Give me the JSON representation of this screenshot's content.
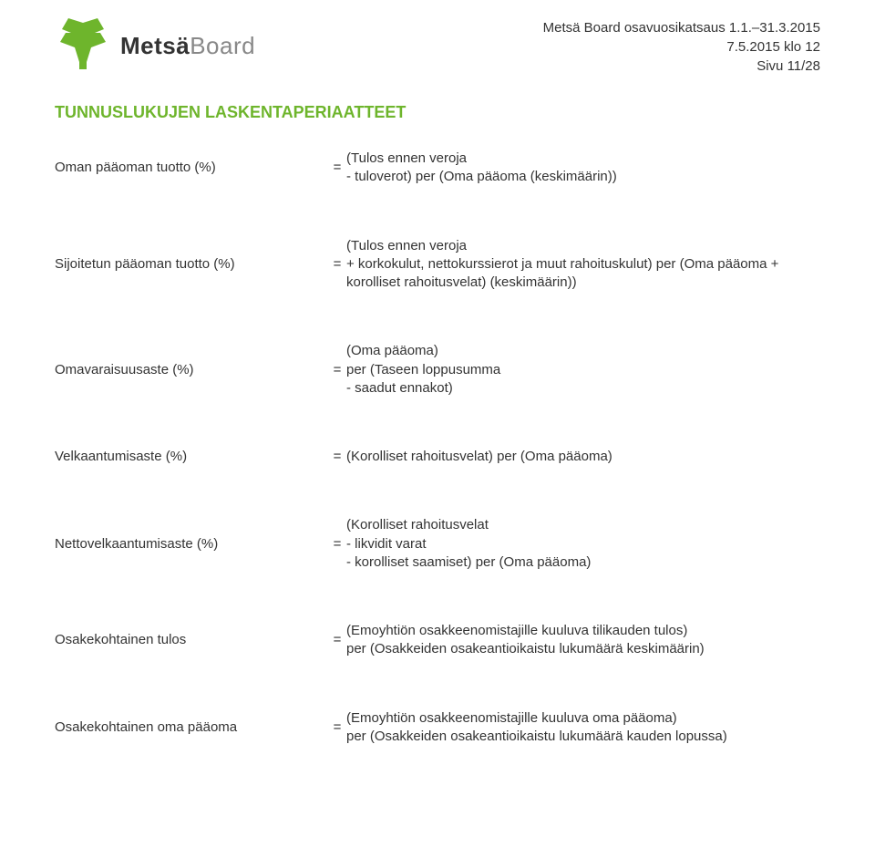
{
  "header": {
    "logo_bold": "Metsä",
    "logo_light": "Board",
    "meta_line1": "Metsä Board osavuosikatsaus 1.1.–31.3.2015",
    "meta_line2": "7.5.2015 klo 12",
    "meta_line3": "Sivu 11/28"
  },
  "section_title": "TUNNUSLUKUJEN LASKENTAPERIAATTEET",
  "title_color": "#6eb52c",
  "logo_color": "#6eb52c",
  "eq": "=",
  "metrics": [
    {
      "label": "Oman pääoman tuotto (%)",
      "formula": "(Tulos ennen veroja\n- tuloverot) per (Oma pääoma (keskimäärin))"
    },
    {
      "label": "Sijoitetun pääoman tuotto (%)",
      "formula": "(Tulos ennen veroja\n+ korkokulut, nettokurssierot ja muut rahoituskulut) per (Oma pääoma + korolliset rahoitusvelat) (keskimäärin))"
    },
    {
      "label": "Omavaraisuusaste (%)",
      "formula": "(Oma pääoma)\nper (Taseen loppusumma\n- saadut ennakot)"
    },
    {
      "label": "Velkaantumisaste (%)",
      "formula": "(Korolliset rahoitusvelat) per (Oma pääoma)"
    },
    {
      "label": "Nettovelkaantumisaste (%)",
      "formula": "(Korolliset rahoitusvelat\n- likvidit varat\n- korolliset saamiset) per (Oma pääoma)"
    },
    {
      "label": "Osakekohtainen tulos",
      "formula": "(Emoyhtiön osakkeenomistajille kuuluva tilikauden tulos)\nper (Osakkeiden osakeantioikaistu lukumäärä keskimäärin)"
    },
    {
      "label": "Osakekohtainen oma pääoma",
      "formula": "(Emoyhtiön osakkeenomistajille kuuluva oma pääoma)\nper (Osakkeiden osakeantioikaistu lukumäärä kauden lopussa)"
    }
  ]
}
